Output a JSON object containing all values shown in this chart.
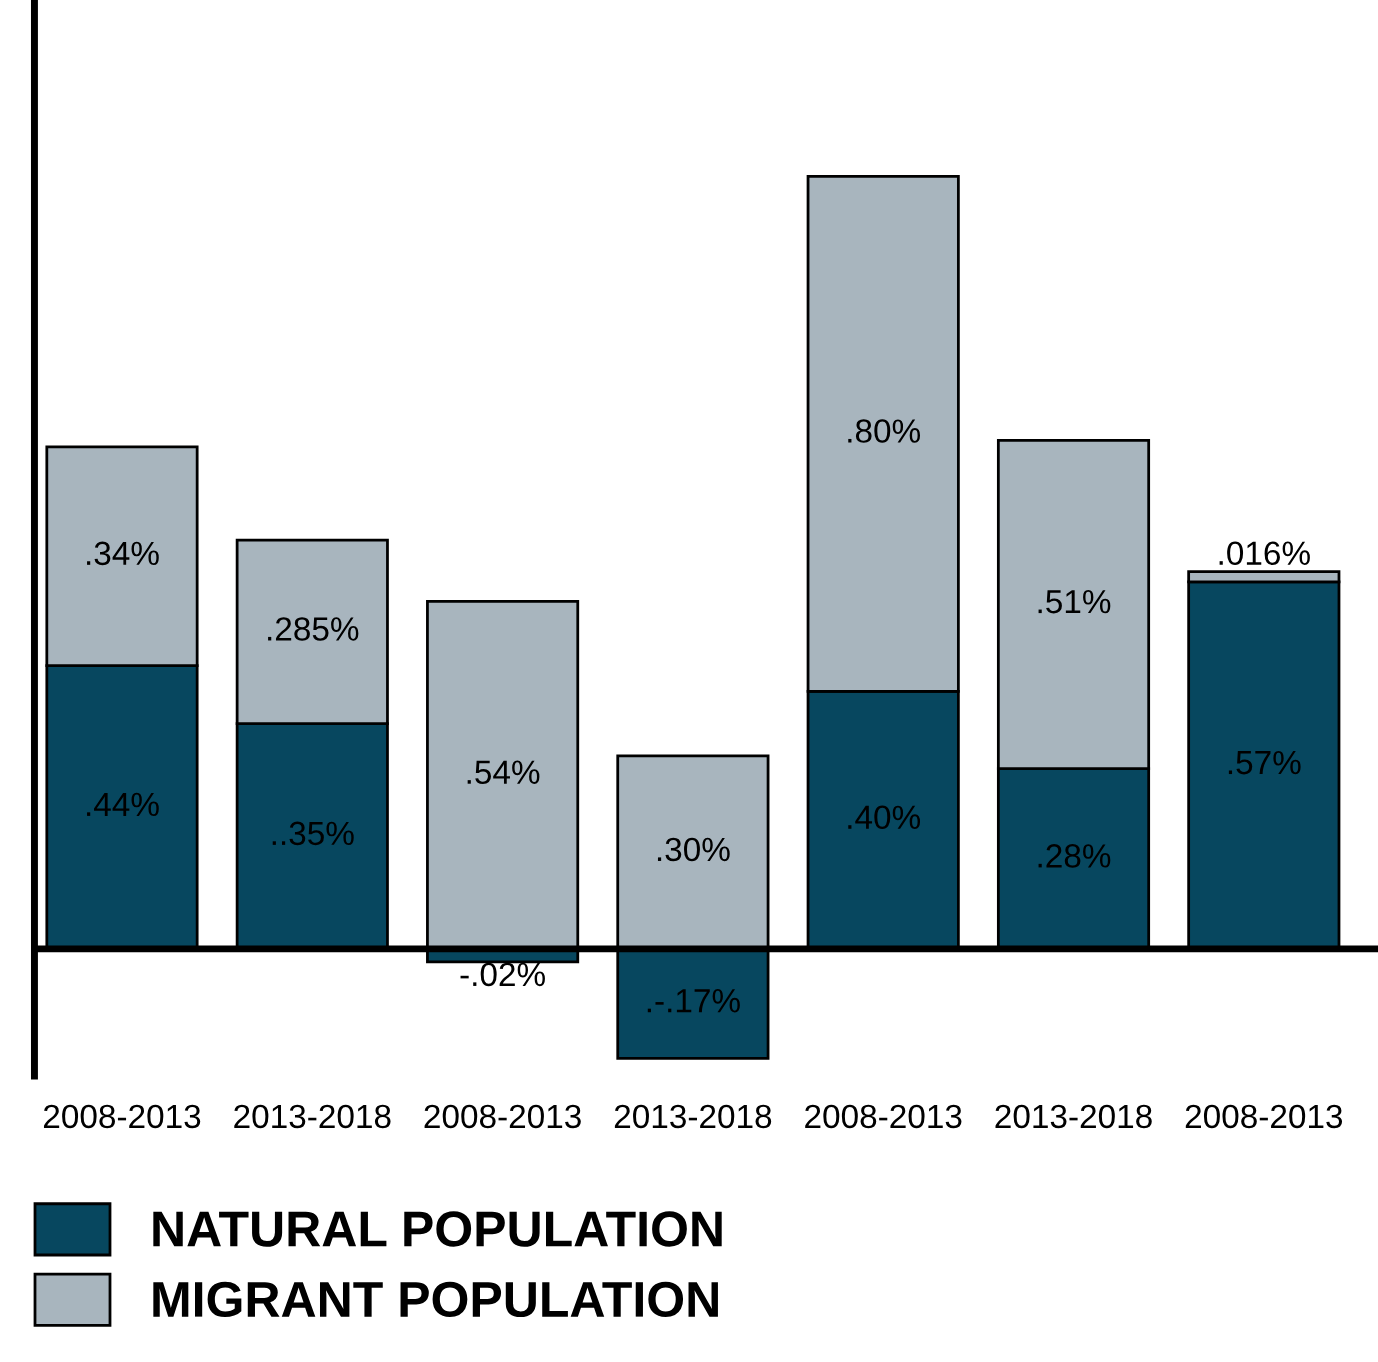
{
  "chart_data": {
    "type": "bar",
    "stacked": true,
    "relative": false,
    "categories": [
      "2008-2013",
      "2013-2018",
      "2008-2013",
      "2013-2018",
      "2008-2013",
      "2013-2018",
      "2008-2013"
    ],
    "series": [
      {
        "name": "NATURAL POPULATION",
        "color": "#07475f",
        "values": [
          0.44,
          0.35,
          -0.02,
          -0.17,
          0.4,
          0.28,
          0.57
        ],
        "value_labels": [
          ".44%",
          "..35%",
          "-.02%",
          ".-.17%",
          ".40%",
          ".28%",
          ".57%"
        ]
      },
      {
        "name": "MIGRANT POPULATION",
        "color": "#a8b5be",
        "values": [
          0.34,
          0.285,
          0.54,
          0.3,
          0.8,
          0.51,
          0.016
        ],
        "value_labels": [
          ".34%",
          ".285%",
          ".54%",
          ".30%",
          ".80%",
          ".51%",
          ".016%"
        ]
      }
    ],
    "legend": "bottom",
    "grid": false
  }
}
